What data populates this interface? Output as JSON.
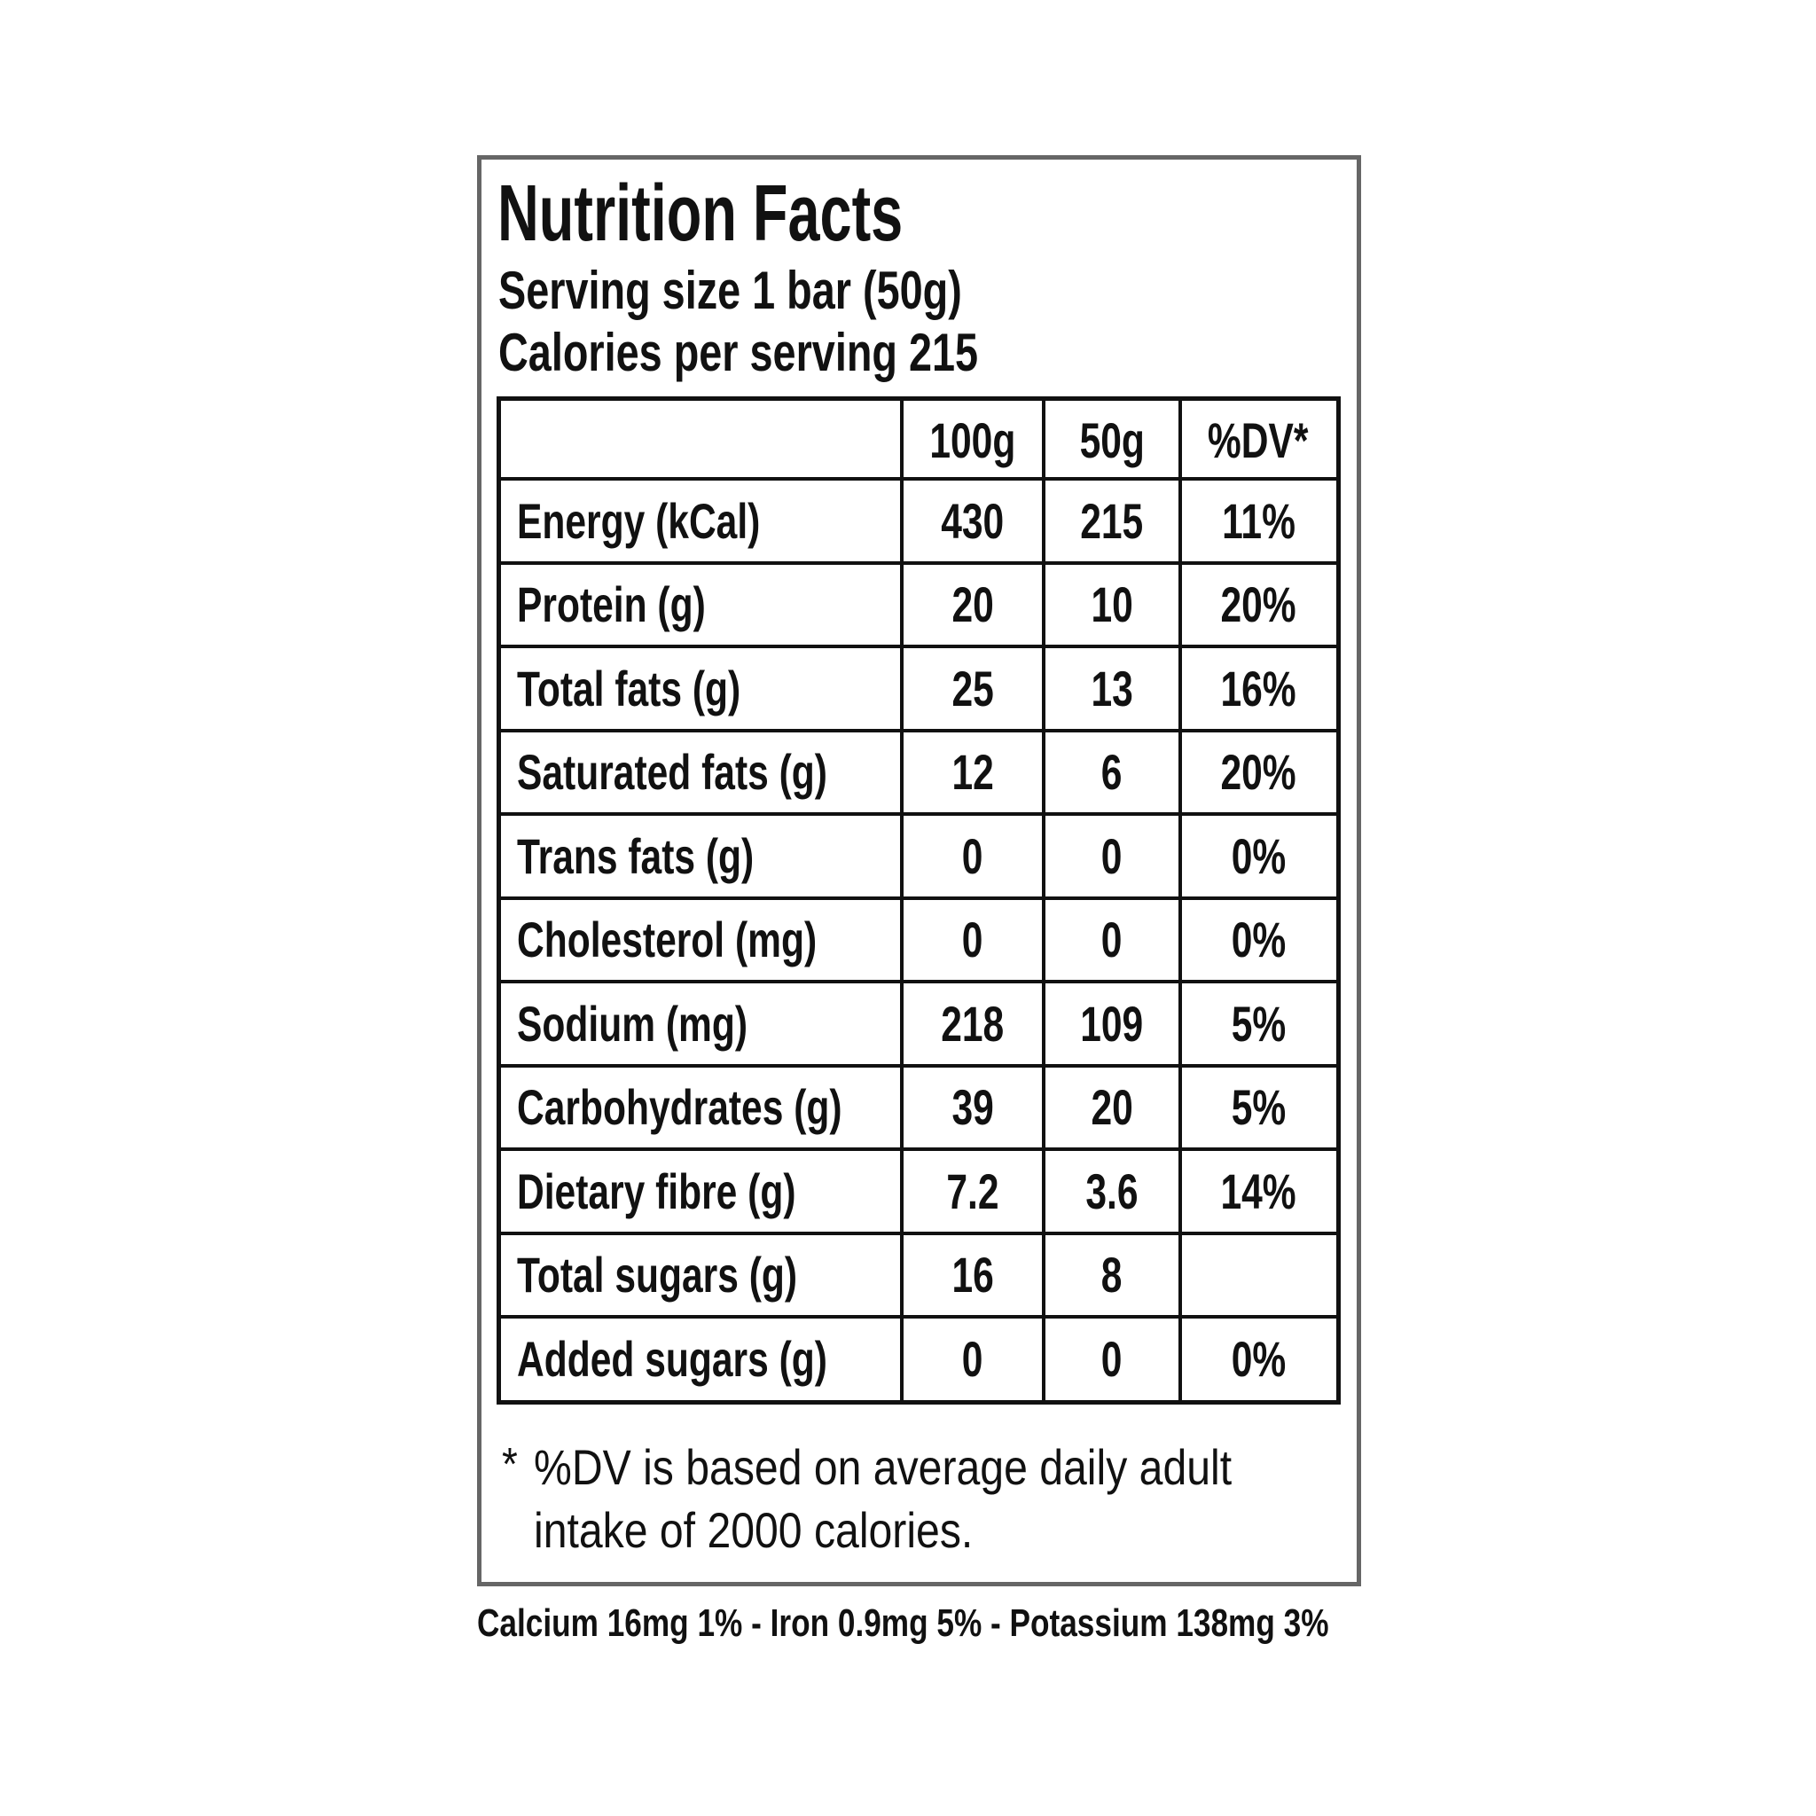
{
  "header": {
    "title": "Nutrition Facts",
    "serving_size": "Serving size 1 bar (50g)",
    "calories": "Calories per serving 215"
  },
  "table": {
    "columns": [
      "100g",
      "50g",
      "%DV*"
    ],
    "rows": [
      [
        "Energy (kCal)",
        "430",
        "215",
        "11%"
      ],
      [
        "Protein (g)",
        "20",
        "10",
        "20%"
      ],
      [
        "Total fats (g)",
        "25",
        "13",
        "16%"
      ],
      [
        "Saturated fats (g)",
        "12",
        "6",
        "20%"
      ],
      [
        "Trans fats (g)",
        "0",
        "0",
        "0%"
      ],
      [
        "Cholesterol (mg)",
        "0",
        "0",
        "0%"
      ],
      [
        "Sodium (mg)",
        "218",
        "109",
        "5%"
      ],
      [
        "Carbohydrates (g)",
        "39",
        "20",
        "5%"
      ],
      [
        "Dietary fibre (g)",
        "7.2",
        "3.6",
        "14%"
      ],
      [
        "Total sugars (g)",
        "16",
        "8",
        null
      ],
      [
        "Added sugars (g)",
        "0",
        "0",
        "0%"
      ]
    ]
  },
  "footnote": {
    "marker": "*",
    "lines": [
      "%DV is based on average daily adult",
      "intake of 2000 calories."
    ]
  },
  "minerals": "Calcium 16mg 1% - Iron 0.9mg 5% - Potassium 138mg 3%"
}
